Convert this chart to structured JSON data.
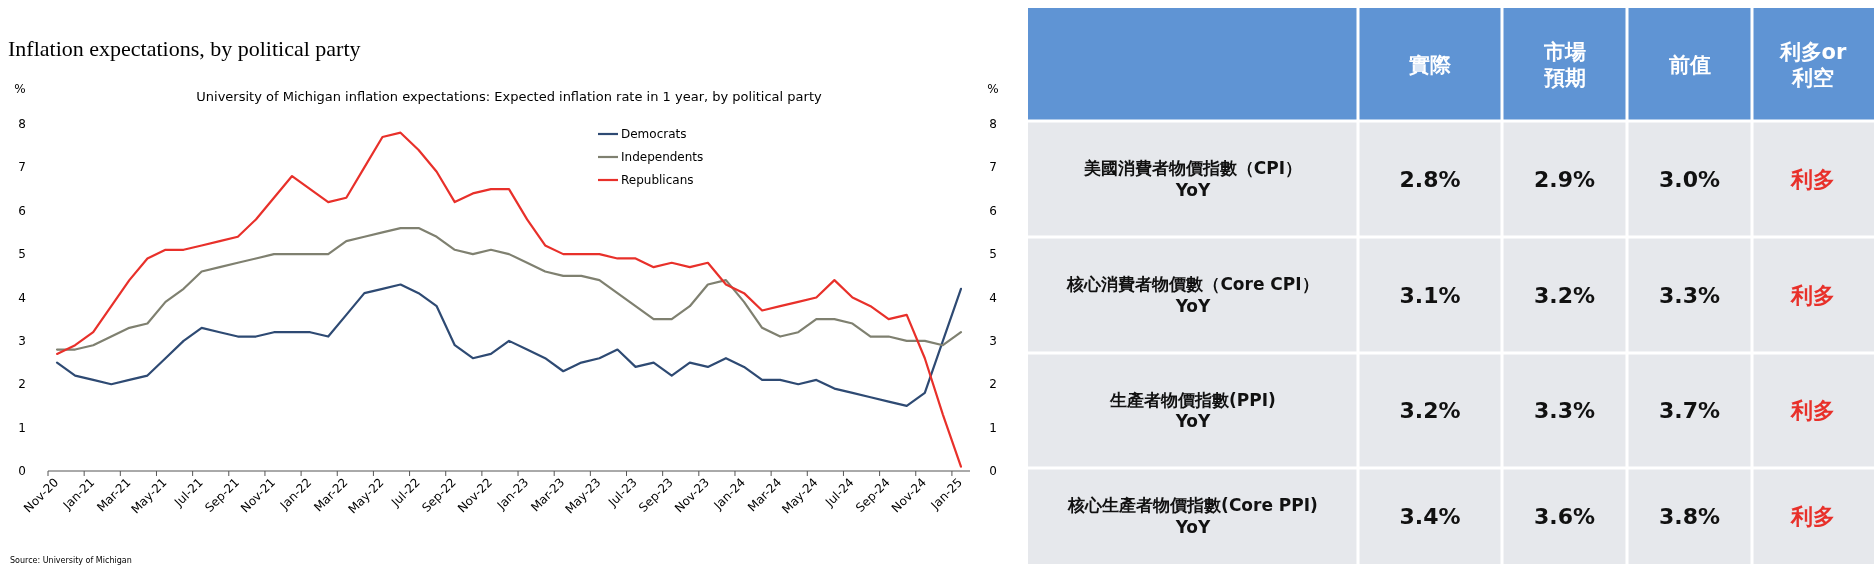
{
  "chart_data": [
    {
      "type": "line",
      "title": "Inflation expectations, by political party",
      "subtitle": "University of Michigan inflation expectations: Expected inflation rate in 1 year, by political party",
      "categories": [
        "Nov-20",
        null,
        "Jan-21",
        null,
        "Mar-21",
        null,
        "May-21",
        null,
        "Jul-21",
        null,
        "Sep-21",
        null,
        "Nov-21",
        null,
        "Jan-22",
        null,
        "Mar-22",
        null,
        "May-22",
        null,
        "Jul-22",
        null,
        "Sep-22",
        null,
        "Nov-22",
        null,
        "Jan-23",
        null,
        "Mar-23",
        null,
        "May-23",
        null,
        "Jul-23",
        null,
        "Sep-23",
        null,
        "Nov-23",
        null,
        "Jan-24",
        null,
        "Mar-24",
        null,
        "May-24",
        null,
        "Jul-24",
        null,
        "Sep-24",
        null,
        "Nov-24",
        null,
        "Jan-25"
      ],
      "series": [
        {
          "name": "Democrats",
          "color": "#2e4a73",
          "values": [
            2.5,
            2.2,
            2.1,
            2.0,
            2.1,
            2.2,
            2.6,
            3.0,
            3.3,
            3.2,
            3.1,
            3.1,
            3.2,
            3.2,
            3.2,
            3.1,
            3.6,
            4.1,
            4.2,
            4.3,
            4.1,
            3.8,
            2.9,
            2.6,
            2.7,
            3.0,
            2.8,
            2.6,
            2.3,
            2.5,
            2.6,
            2.8,
            2.4,
            2.5,
            2.2,
            2.5,
            2.4,
            2.6,
            2.4,
            2.1,
            2.1,
            2.0,
            2.1,
            1.9,
            1.8,
            1.7,
            1.6,
            1.5,
            1.8,
            3.0,
            4.2
          ]
        },
        {
          "name": "Independents",
          "color": "#7f8070",
          "values": [
            2.8,
            2.8,
            2.9,
            3.1,
            3.3,
            3.4,
            3.9,
            4.2,
            4.6,
            4.7,
            4.8,
            4.9,
            5.0,
            5.0,
            5.0,
            5.0,
            5.3,
            5.4,
            5.5,
            5.6,
            5.6,
            5.4,
            5.1,
            5.0,
            5.1,
            5.0,
            4.8,
            4.6,
            4.5,
            4.5,
            4.4,
            4.1,
            3.8,
            3.5,
            3.5,
            3.8,
            4.3,
            4.4,
            3.9,
            3.3,
            3.1,
            3.2,
            3.5,
            3.5,
            3.4,
            3.1,
            3.1,
            3.0,
            3.0,
            2.9,
            3.2
          ]
        },
        {
          "name": "Republicans",
          "color": "#e8302a",
          "values": [
            2.7,
            2.9,
            3.2,
            3.8,
            4.4,
            4.9,
            5.1,
            5.1,
            5.2,
            5.3,
            5.4,
            5.8,
            6.3,
            6.8,
            6.5,
            6.2,
            6.3,
            7.0,
            7.7,
            7.8,
            7.4,
            6.9,
            6.2,
            6.4,
            6.5,
            6.5,
            5.8,
            5.2,
            5.0,
            5.0,
            5.0,
            4.9,
            4.9,
            4.7,
            4.8,
            4.7,
            4.8,
            4.3,
            4.1,
            3.7,
            3.8,
            3.9,
            4.0,
            4.4,
            4.0,
            3.8,
            3.5,
            3.6,
            2.6,
            1.3,
            0.1
          ]
        }
      ],
      "ylabel": "%",
      "y2label": "%",
      "ylim": [
        0,
        8
      ],
      "yticks": [
        0,
        1,
        2,
        3,
        4,
        5,
        6,
        7,
        8
      ],
      "y2lim": [
        0,
        8
      ],
      "y2ticks": [
        0,
        1,
        2,
        3,
        4,
        5,
        6,
        7,
        8
      ],
      "legend": "top",
      "annotations": [
        "Source: University of Michigan"
      ]
    },
    {
      "type": "other",
      "categories": [
        "實際",
        "市場預期",
        "前值",
        "利多or利空"
      ],
      "y_categories": [
        "美國消費者物價指數（CPI）\nYoY",
        "核心消費者物價數（Core CPI）\nYoY",
        "生產者物價指數(PPI)\nYoY",
        "核心生產者物價指數(Core PPI)\nYoY"
      ],
      "cell_labels": [
        [
          "2.8%",
          "2.9%",
          "3.0%",
          "利多"
        ],
        [
          "3.1%",
          "3.2%",
          "3.3%",
          "利多"
        ],
        [
          "3.2%",
          "3.3%",
          "3.7%",
          "利多"
        ],
        [
          "3.4%",
          "3.6%",
          "3.8%",
          "利多"
        ]
      ],
      "colors": [
        null,
        null,
        null,
        "#e8302a"
      ]
    }
  ]
}
